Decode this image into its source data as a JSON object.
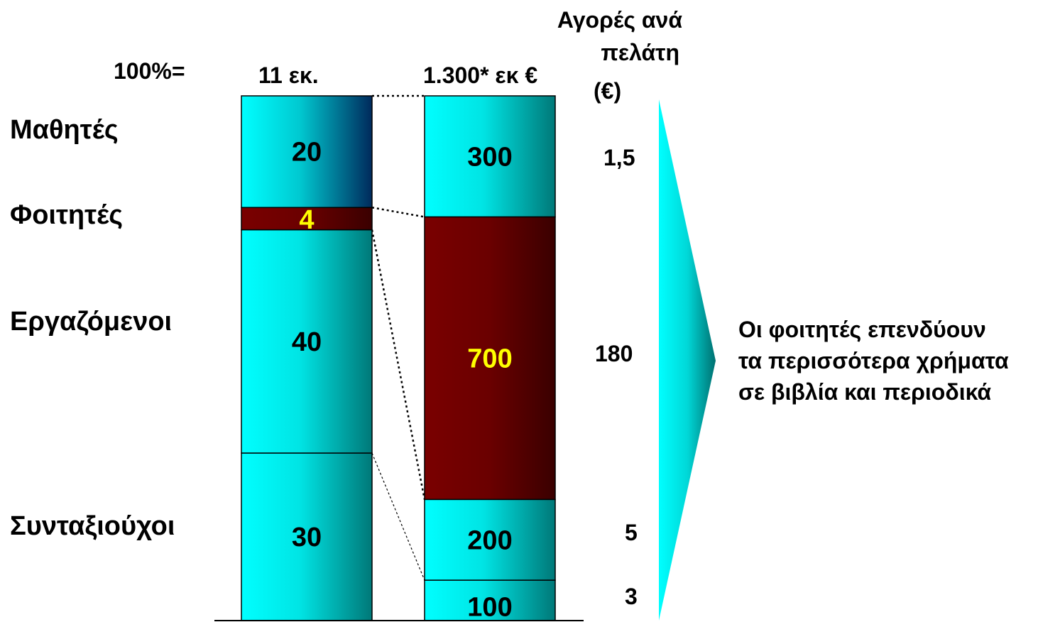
{
  "header": {
    "total_label": "100%=",
    "col1_total": "11 εκ.",
    "col2_total": "1.300* εκ €",
    "ppc_title_line1": "Αγορές ανά",
    "ppc_title_line2": "πελάτη",
    "ppc_title_line3": "(€)"
  },
  "message_lines": [
    "Οι φοιτητές επενδύουν",
    "τα περισσότερα χρήματα",
    "σε βιβλία και περιοδικά"
  ],
  "colors": {
    "cyan": "#00ffff",
    "teal": "#008080",
    "navy": "#002a5c",
    "maroon": "#7a0000",
    "dark_maroon": "#3a0000",
    "yellow": "#ffff00"
  },
  "chart_data": {
    "type": "bar",
    "stacked": true,
    "categories": [
      "11 εκ.",
      "1.300* εκ €"
    ],
    "segments": [
      {
        "name": "Μαθητές",
        "customers": 20,
        "spend": 300,
        "per_customer": "1,5"
      },
      {
        "name": "Φοιτητές",
        "customers": 4,
        "spend": 700,
        "per_customer": "180"
      },
      {
        "name": "Εργαζόμενοι",
        "customers": 40,
        "spend": 200,
        "per_customer": "5"
      },
      {
        "name": "Συνταξιούχοι",
        "customers": 30,
        "spend": 100,
        "per_customer": "3"
      }
    ]
  }
}
